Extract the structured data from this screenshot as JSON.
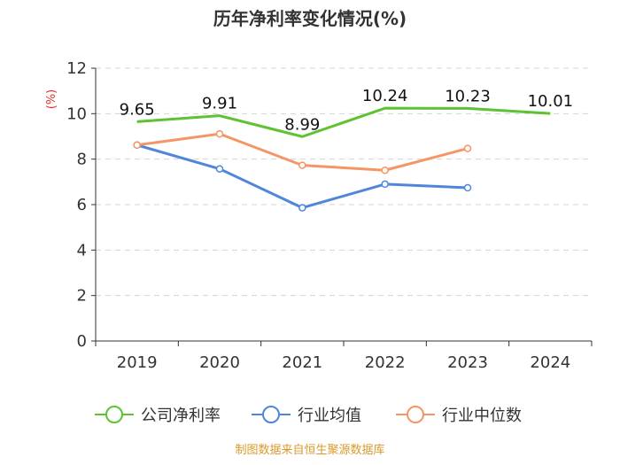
{
  "chart_data": {
    "type": "line",
    "title": "历年净利率变化情况(%)",
    "ylabel": "(%)",
    "xlabel": "",
    "categories": [
      "2019",
      "2020",
      "2021",
      "2022",
      "2023",
      "2024"
    ],
    "ylim": [
      0,
      12
    ],
    "yticks": [
      0,
      2,
      4,
      6,
      8,
      10,
      12
    ],
    "grid": true,
    "legend_position": "bottom",
    "series": [
      {
        "name": "公司净利率",
        "color": "#5ec232",
        "values": [
          9.65,
          9.91,
          8.99,
          10.24,
          10.23,
          10.01
        ],
        "labels": [
          "9.65",
          "9.91",
          "8.99",
          "10.24",
          "10.23",
          "10.01"
        ],
        "show_labels": true,
        "show_markers": false
      },
      {
        "name": "行业均值",
        "color": "#4f86dc",
        "values": [
          8.62,
          7.57,
          5.86,
          6.9,
          6.74,
          null
        ],
        "show_labels": false,
        "show_markers": true
      },
      {
        "name": "行业中位数",
        "color": "#f59566",
        "values": [
          8.62,
          9.11,
          7.73,
          7.51,
          8.47,
          null
        ],
        "show_labels": false,
        "show_markers": true
      }
    ],
    "source": "制图数据来自恒生聚源数据库"
  }
}
